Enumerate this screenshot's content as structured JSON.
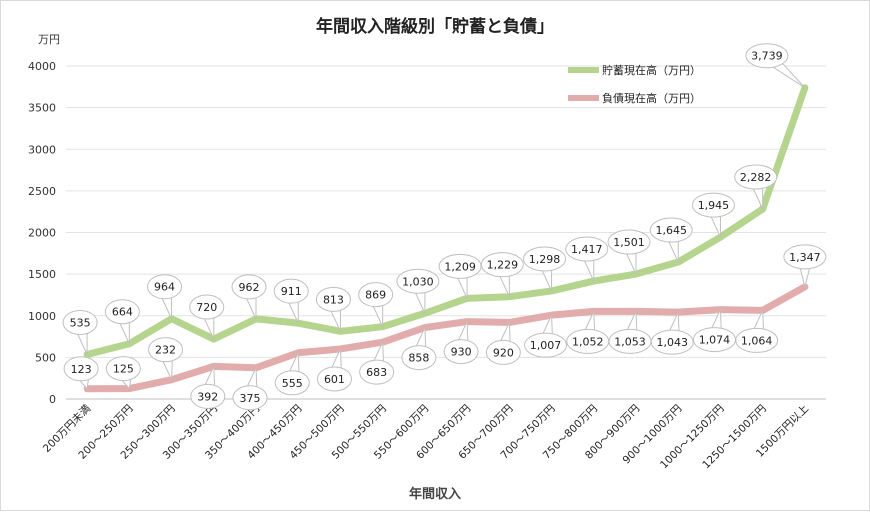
{
  "chart_data": {
    "type": "line",
    "title": "年間収入階級別「貯蓄と負債」",
    "ylabel": "万円",
    "xlabel": "年間収入",
    "ylim": [
      0,
      4000
    ],
    "yticks": [
      0,
      500,
      1000,
      1500,
      2000,
      2500,
      3000,
      3500,
      4000
    ],
    "grid": true,
    "legend_position": "top-right",
    "categories": [
      "200万円未満",
      "200～250万円",
      "250～300万円",
      "300～350万円",
      "350～400万円",
      "400～450万円",
      "450～500万円",
      "500～550万円",
      "550～600万円",
      "600～650万円",
      "650～700万円",
      "700～750万円",
      "750～800万円",
      "800～900万円",
      "900～1000万円",
      "1000～1250万円",
      "1250～1500万円",
      "1500万円以上"
    ],
    "series": [
      {
        "name": "貯蓄現在高（万円）",
        "color": "#b5d48e",
        "values": [
          535,
          664,
          964,
          720,
          962,
          911,
          813,
          869,
          1030,
          1209,
          1229,
          1298,
          1417,
          1501,
          1645,
          1945,
          2282,
          3739
        ],
        "labels": [
          "535",
          "664",
          "964",
          "720",
          "962",
          "911",
          "813",
          "869",
          "1,030",
          "1,209",
          "1,229",
          "1,298",
          "1,417",
          "1,501",
          "1,645",
          "1,945",
          "2,282",
          "3,739"
        ]
      },
      {
        "name": "負債現在高（万円）",
        "color": "#e1acab",
        "values": [
          123,
          125,
          232,
          392,
          375,
          555,
          601,
          683,
          858,
          930,
          920,
          1007,
          1052,
          1053,
          1043,
          1074,
          1064,
          1347
        ],
        "labels": [
          "123",
          "125",
          "232",
          "392",
          "375",
          "555",
          "601",
          "683",
          "858",
          "930",
          "920",
          "1,007",
          "1,052",
          "1,053",
          "1,043",
          "1,074",
          "1,064",
          "1,347"
        ]
      }
    ]
  }
}
